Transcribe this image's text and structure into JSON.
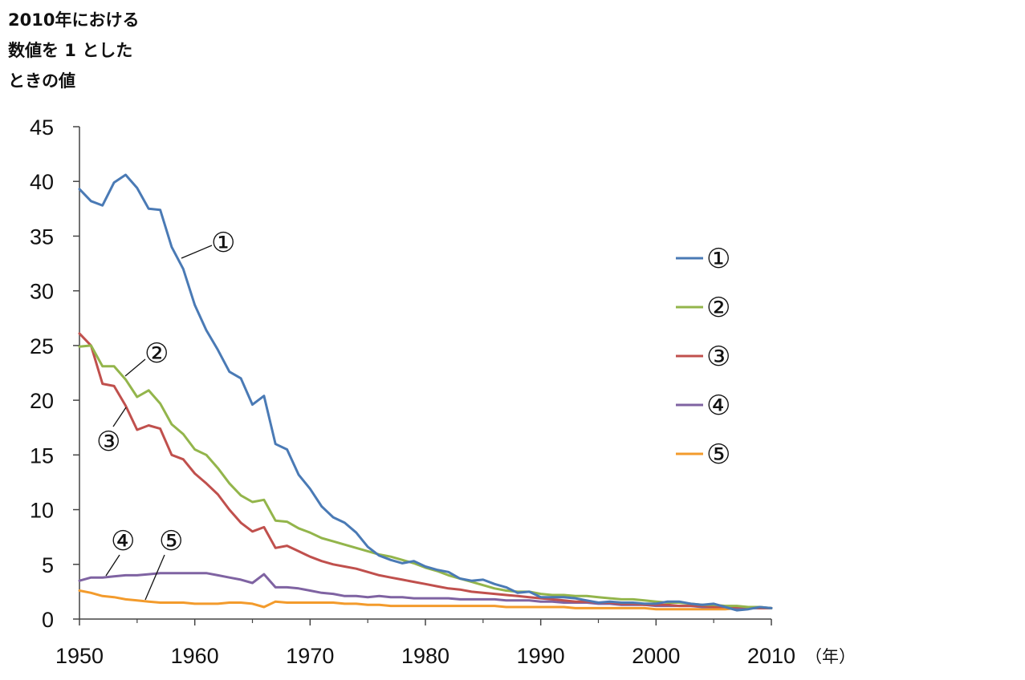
{
  "y_axis_caption": [
    "2010年における",
    "数値を 1 とした",
    "ときの値"
  ],
  "x_unit": "（年）",
  "chart_data": {
    "type": "line",
    "title": "",
    "xlabel": "（年）",
    "ylabel": "2010年における数値を 1 としたときの値",
    "xlim": [
      1950,
      2010
    ],
    "ylim": [
      0,
      45
    ],
    "x_ticks": [
      1950,
      1960,
      1970,
      1980,
      1990,
      2000,
      2010
    ],
    "y_ticks": [
      0,
      5,
      10,
      15,
      20,
      25,
      30,
      35,
      40,
      45
    ],
    "grid": false,
    "legend_position": "right",
    "x": [
      1950,
      1951,
      1952,
      1953,
      1954,
      1955,
      1956,
      1957,
      1958,
      1959,
      1960,
      1961,
      1962,
      1963,
      1964,
      1965,
      1966,
      1967,
      1968,
      1969,
      1970,
      1971,
      1972,
      1973,
      1974,
      1975,
      1976,
      1977,
      1978,
      1979,
      1980,
      1981,
      1982,
      1983,
      1984,
      1985,
      1986,
      1987,
      1988,
      1989,
      1990,
      1991,
      1992,
      1993,
      1994,
      1995,
      1996,
      1997,
      1998,
      1999,
      2000,
      2001,
      2002,
      2003,
      2004,
      2005,
      2006,
      2007,
      2008,
      2009,
      2010
    ],
    "series": [
      {
        "name": "①",
        "color": "#4a7ab5",
        "values": [
          39.3,
          38.2,
          37.8,
          39.9,
          40.6,
          39.4,
          37.5,
          37.4,
          34.0,
          32.0,
          28.7,
          26.4,
          24.6,
          22.6,
          22.0,
          19.6,
          20.4,
          16.0,
          15.5,
          13.2,
          11.9,
          10.3,
          9.3,
          8.8,
          7.9,
          6.6,
          5.8,
          5.4,
          5.1,
          5.3,
          4.8,
          4.5,
          4.3,
          3.7,
          3.5,
          3.6,
          3.2,
          2.9,
          2.4,
          2.5,
          2.0,
          2.0,
          2.0,
          1.9,
          1.7,
          1.5,
          1.6,
          1.5,
          1.5,
          1.4,
          1.4,
          1.6,
          1.6,
          1.4,
          1.3,
          1.4,
          1.1,
          0.8,
          0.9,
          1.1,
          1.0
        ]
      },
      {
        "name": "②",
        "color": "#93b54b",
        "values": [
          24.9,
          25.0,
          23.1,
          23.1,
          21.9,
          20.3,
          20.9,
          19.7,
          17.8,
          16.9,
          15.5,
          15.0,
          13.8,
          12.4,
          11.3,
          10.7,
          10.9,
          9.0,
          8.9,
          8.3,
          7.9,
          7.4,
          7.1,
          6.8,
          6.5,
          6.2,
          5.9,
          5.7,
          5.4,
          5.1,
          4.7,
          4.4,
          4.0,
          3.7,
          3.4,
          3.1,
          2.8,
          2.6,
          2.5,
          2.5,
          2.3,
          2.2,
          2.2,
          2.1,
          2.1,
          2.0,
          1.9,
          1.8,
          1.8,
          1.7,
          1.6,
          1.5,
          1.5,
          1.4,
          1.3,
          1.3,
          1.2,
          1.2,
          1.1,
          1.1,
          1.0
        ]
      },
      {
        "name": "③",
        "color": "#c0504d",
        "values": [
          26.1,
          25.0,
          21.5,
          21.3,
          19.5,
          17.3,
          17.7,
          17.4,
          15.0,
          14.6,
          13.3,
          12.4,
          11.4,
          10.0,
          8.8,
          8.0,
          8.4,
          6.5,
          6.7,
          6.2,
          5.7,
          5.3,
          5.0,
          4.8,
          4.6,
          4.3,
          4.0,
          3.8,
          3.6,
          3.4,
          3.2,
          3.0,
          2.8,
          2.7,
          2.5,
          2.4,
          2.3,
          2.2,
          2.1,
          2.0,
          1.9,
          1.8,
          1.7,
          1.6,
          1.6,
          1.5,
          1.5,
          1.4,
          1.4,
          1.3,
          1.3,
          1.3,
          1.2,
          1.2,
          1.2,
          1.1,
          1.1,
          1.1,
          1.1,
          1.0,
          1.0
        ]
      },
      {
        "name": "④",
        "color": "#7f63a2",
        "values": [
          3.5,
          3.8,
          3.8,
          3.9,
          4.0,
          4.0,
          4.1,
          4.2,
          4.2,
          4.2,
          4.2,
          4.2,
          4.0,
          3.8,
          3.6,
          3.3,
          4.1,
          2.9,
          2.9,
          2.8,
          2.6,
          2.4,
          2.3,
          2.1,
          2.1,
          2.0,
          2.1,
          2.0,
          2.0,
          1.9,
          1.9,
          1.9,
          1.9,
          1.8,
          1.8,
          1.8,
          1.8,
          1.7,
          1.7,
          1.7,
          1.6,
          1.6,
          1.5,
          1.5,
          1.5,
          1.4,
          1.4,
          1.3,
          1.3,
          1.3,
          1.2,
          1.2,
          1.2,
          1.2,
          1.1,
          1.1,
          1.1,
          1.0,
          1.0,
          1.0,
          1.0
        ]
      },
      {
        "name": "⑤",
        "color": "#f39b2c",
        "values": [
          2.6,
          2.4,
          2.1,
          2.0,
          1.8,
          1.7,
          1.6,
          1.5,
          1.5,
          1.5,
          1.4,
          1.4,
          1.4,
          1.5,
          1.5,
          1.4,
          1.1,
          1.6,
          1.5,
          1.5,
          1.5,
          1.5,
          1.5,
          1.4,
          1.4,
          1.3,
          1.3,
          1.2,
          1.2,
          1.2,
          1.2,
          1.2,
          1.2,
          1.2,
          1.2,
          1.2,
          1.2,
          1.1,
          1.1,
          1.1,
          1.1,
          1.1,
          1.1,
          1.0,
          1.0,
          1.0,
          1.0,
          1.0,
          1.0,
          1.0,
          0.9,
          0.9,
          0.9,
          0.9,
          0.9,
          0.9,
          0.9,
          1.0,
          1.0,
          1.0,
          1.0
        ]
      }
    ],
    "annotations": [
      "①",
      "②",
      "③",
      "④",
      "⑤"
    ]
  }
}
